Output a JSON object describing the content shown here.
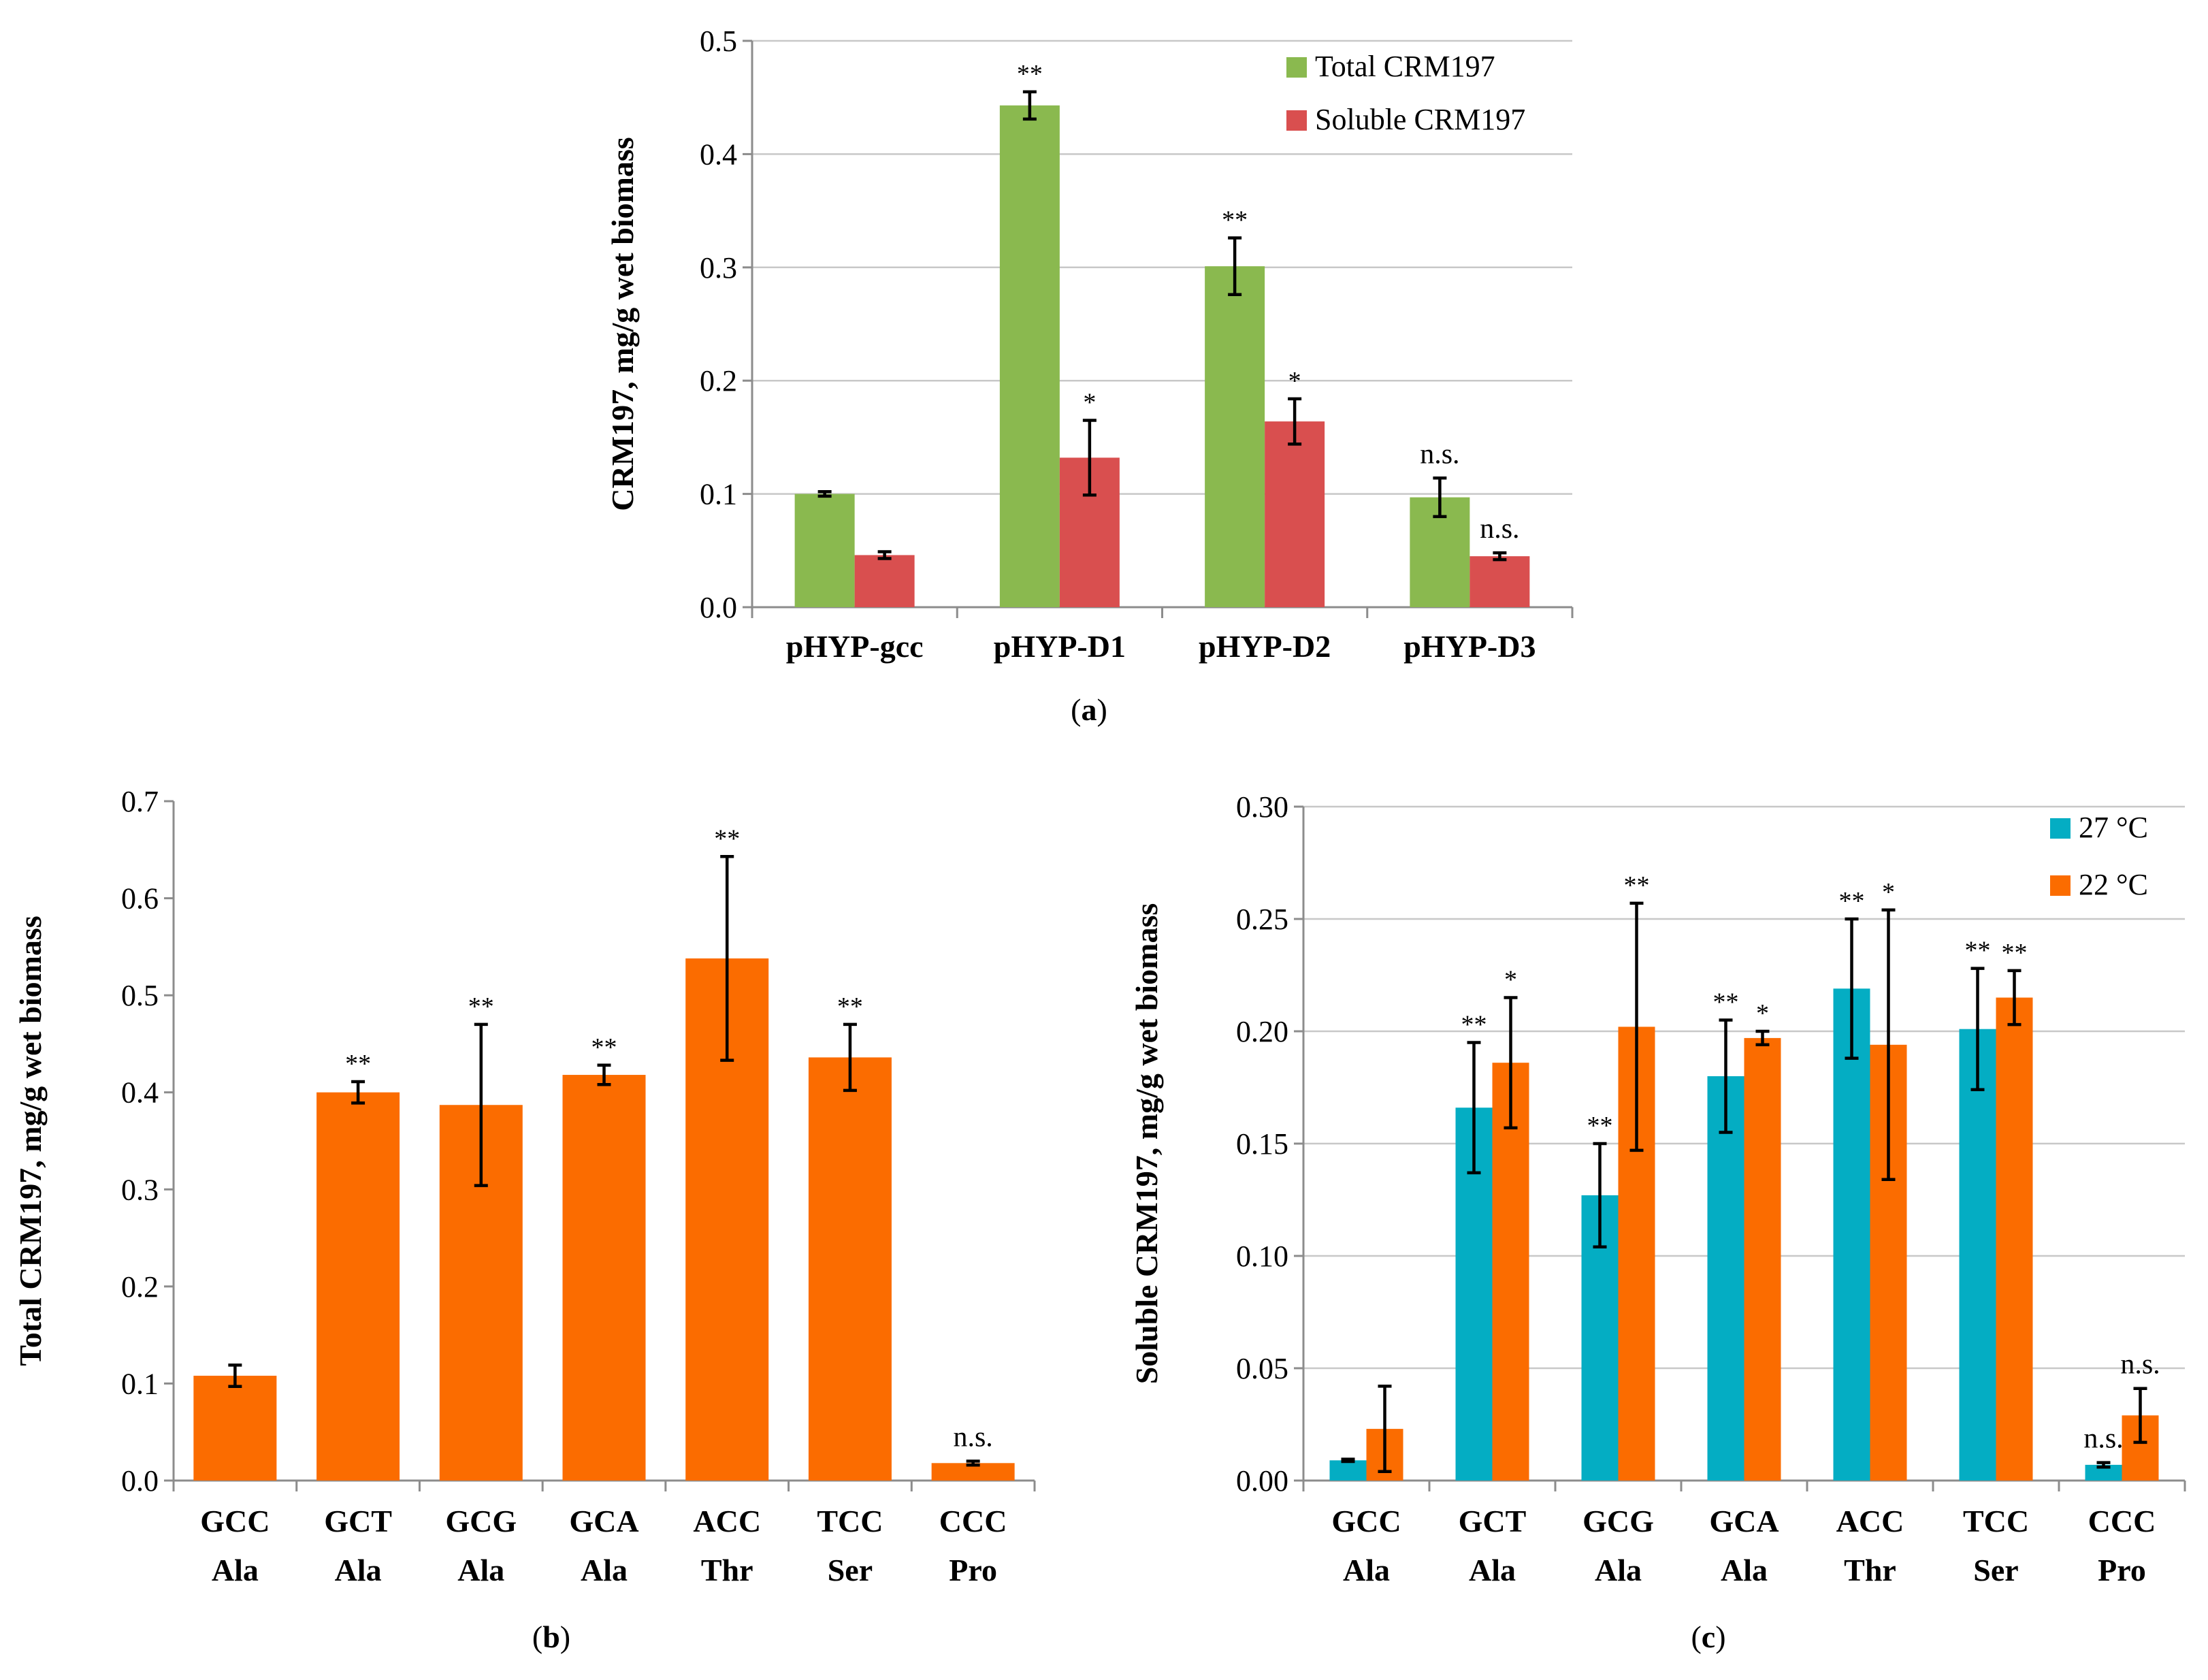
{
  "colors": {
    "green": "#8ab94f",
    "red": "#d94f4f",
    "orange": "#fb6c00",
    "teal": "#04adc3"
  },
  "chart_data": [
    {
      "id": "a",
      "type": "bar",
      "panel_label": "a",
      "ylabel": "CRM197,  mg/g wet biomass",
      "ylim": [
        0,
        0.5
      ],
      "yticks": [
        0,
        0.1,
        0.2,
        0.3,
        0.4,
        0.5
      ],
      "ytick_decimals": 1,
      "grid": true,
      "legend": "top-right",
      "categories": [
        [
          "pHYP-gcc"
        ],
        [
          "pHYP-D1"
        ],
        [
          "pHYP-D2"
        ],
        [
          "pHYP-D3"
        ]
      ],
      "series": [
        {
          "name": "Total CRM197",
          "color": "#8ab94f",
          "values": [
            0.1,
            0.443,
            0.301,
            0.097
          ],
          "errors": [
            0.002,
            0.012,
            0.025,
            0.017
          ],
          "significance": [
            "",
            "**",
            "**",
            "n.s."
          ]
        },
        {
          "name": "Soluble CRM197",
          "color": "#d94f4f",
          "values": [
            0.046,
            0.132,
            0.164,
            0.045
          ],
          "errors": [
            0.003,
            0.033,
            0.02,
            0.003
          ],
          "significance": [
            "",
            "*",
            "*",
            "n.s."
          ]
        }
      ]
    },
    {
      "id": "b",
      "type": "bar",
      "panel_label": "b",
      "ylabel": "Total CRM197,  mg/g wet biomass",
      "ylim": [
        0,
        0.7
      ],
      "yticks": [
        0,
        0.1,
        0.2,
        0.3,
        0.4,
        0.5,
        0.6,
        0.7
      ],
      "ytick_decimals": 1,
      "grid": false,
      "legend": "none",
      "categories": [
        [
          "GCC",
          "Ala"
        ],
        [
          "GCT",
          "Ala"
        ],
        [
          "GCG",
          "Ala"
        ],
        [
          "GCA",
          "Ala"
        ],
        [
          "ACC",
          "Thr"
        ],
        [
          "TCC",
          "Ser"
        ],
        [
          "CCC",
          "Pro"
        ]
      ],
      "series": [
        {
          "name": "Total CRM197",
          "color": "#fb6c00",
          "values": [
            0.108,
            0.4,
            0.387,
            0.418,
            0.538,
            0.436,
            0.018
          ],
          "errors": [
            0.011,
            0.011,
            0.083,
            0.01,
            0.105,
            0.034,
            0.002
          ],
          "significance": [
            "",
            "**",
            "**",
            "**",
            "**",
            "**",
            "n.s."
          ]
        }
      ]
    },
    {
      "id": "c",
      "type": "bar",
      "panel_label": "c",
      "ylabel": "Soluble CRM197,  mg/g wet biomass",
      "ylim": [
        0,
        0.3
      ],
      "yticks": [
        0,
        0.05,
        0.1,
        0.15,
        0.2,
        0.25,
        0.3
      ],
      "ytick_decimals": 2,
      "grid": true,
      "legend": "top-right",
      "categories": [
        [
          "GCC",
          "Ala"
        ],
        [
          "GCT",
          "Ala"
        ],
        [
          "GCG",
          "Ala"
        ],
        [
          "GCA",
          "Ala"
        ],
        [
          "ACC",
          "Thr"
        ],
        [
          "TCC",
          "Ser"
        ],
        [
          "CCC",
          "Pro"
        ]
      ],
      "series": [
        {
          "name": "27 °C",
          "color": "#04adc3",
          "values": [
            0.009,
            0.166,
            0.127,
            0.18,
            0.219,
            0.201,
            0.007
          ],
          "errors": [
            0.0005,
            0.029,
            0.023,
            0.025,
            0.031,
            0.027,
            0.001
          ],
          "significance": [
            "",
            "**",
            "**",
            "**",
            "**",
            "**",
            "n.s."
          ]
        },
        {
          "name": "22 °C",
          "color": "#fb6c00",
          "values": [
            0.023,
            0.186,
            0.202,
            0.197,
            0.194,
            0.215,
            0.029
          ],
          "errors": [
            0.019,
            0.029,
            0.055,
            0.003,
            0.06,
            0.012,
            0.012
          ],
          "significance": [
            "",
            "*",
            "**",
            "*",
            "*",
            "**",
            "n.s."
          ]
        }
      ]
    }
  ]
}
